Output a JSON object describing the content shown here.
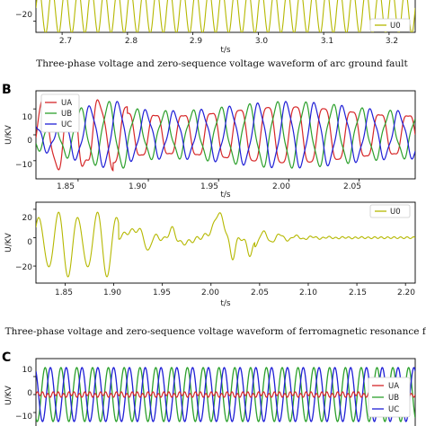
{
  "panel_labels": [
    "B",
    "C"
  ],
  "captions": [
    "Three-phase voltage and zero-sequence voltage waveform of arc ground fault",
    "Three-phase voltage and zero-sequence voltage waveform of ferromagnetic resonance fault"
  ],
  "colors": {
    "UA": "#d62728",
    "UB": "#2ca02c",
    "UC": "#1f1fd6",
    "U0": "#b5b800"
  },
  "chart_data": [
    {
      "id": "top-u0",
      "type": "line",
      "xlabel": "t/s",
      "ylabel": "",
      "xlim": [
        2.66,
        3.24
      ],
      "ylim": [
        -30,
        0
      ],
      "xticks": [
        "2.7",
        "2.8",
        "2.9",
        "3.0",
        "3.1",
        "3.2"
      ],
      "yticks": [
        "−20"
      ],
      "legend": "bottom-right",
      "series": [
        {
          "name": "U0",
          "waveform": "oscillation",
          "cycles": 29,
          "amplitude": 22
        }
      ]
    },
    {
      "id": "b-three-phase",
      "type": "line",
      "xlabel": "t/s",
      "ylabel": "U/KV",
      "xlim": [
        1.82,
        2.09
      ],
      "ylim": [
        -17,
        17
      ],
      "xticks": [
        "1.85",
        "1.90",
        "1.95",
        "2.00",
        "2.05"
      ],
      "yticks": [
        "10",
        "0",
        "−10"
      ],
      "legend": "top-left",
      "series": [
        {
          "name": "UA",
          "waveform": "distorted-sine",
          "frequency_hz": 50,
          "amplitude": 12
        },
        {
          "name": "UB",
          "waveform": "distorted-sine",
          "frequency_hz": 50,
          "amplitude": 12
        },
        {
          "name": "UC",
          "waveform": "distorted-sine",
          "frequency_hz": 50,
          "amplitude": 12
        }
      ]
    },
    {
      "id": "b-u0",
      "type": "line",
      "xlabel": "t/s",
      "ylabel": "U/KV",
      "xlim": [
        1.82,
        2.21
      ],
      "ylim": [
        -32,
        25
      ],
      "xticks": [
        "1.85",
        "1.90",
        "1.95",
        "2.00",
        "2.05",
        "2.10",
        "2.15",
        "2.20"
      ],
      "yticks": [
        "20",
        "0",
        "−20"
      ],
      "legend": "top-right",
      "series": [
        {
          "name": "U0",
          "waveform": "decaying-transient",
          "amplitude": 25
        }
      ]
    },
    {
      "id": "c-three-phase",
      "type": "line",
      "xlabel": "",
      "ylabel": "U/KV",
      "xlim": [
        0,
        1
      ],
      "ylim": [
        -20,
        20
      ],
      "xticks": [],
      "yticks": [
        "10",
        "0",
        "−10"
      ],
      "legend": "right",
      "series": [
        {
          "name": "UA",
          "waveform": "small-ripple",
          "amplitude": 1.5
        },
        {
          "name": "UB",
          "waveform": "sine",
          "amplitude": 15
        },
        {
          "name": "UC",
          "waveform": "sine",
          "amplitude": 15
        }
      ]
    }
  ]
}
